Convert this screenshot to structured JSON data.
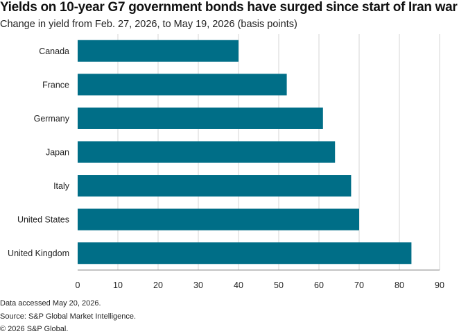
{
  "title": "Yields on 10-year G7 government bonds have surged since start of Iran war",
  "subtitle": "Change in yield from Feb. 27, 2026, to May 19, 2026 (basis points)",
  "notes": [
    "Data accessed May 20, 2026.",
    "Source: S&P Global Market Intelligence.",
    "© 2026 S&P Global."
  ],
  "chart_data": {
    "type": "bar",
    "orientation": "horizontal",
    "categories": [
      "Canada",
      "France",
      "Germany",
      "Japan",
      "Italy",
      "United States",
      "United Kingdom"
    ],
    "values": [
      40,
      52,
      61,
      64,
      68,
      70,
      83
    ],
    "xlim": [
      0,
      90
    ],
    "xticks": [
      0,
      10,
      20,
      30,
      40,
      50,
      60,
      70,
      80,
      90
    ],
    "grid": "vertical",
    "bar_color": "#006e87",
    "title": "Yields on 10-year G7 government bonds have surged since start of Iran war",
    "subtitle": "Change in yield from Feb. 27, 2026, to May 19, 2026 (basis points)"
  }
}
